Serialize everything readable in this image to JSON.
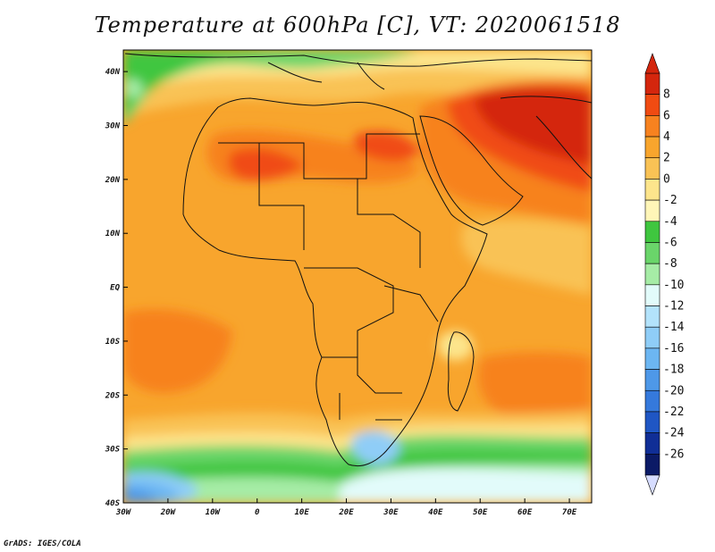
{
  "title": "Temperature at 600hPa [C], VT: 2020061518",
  "credit": "GrADS: IGES/COLA",
  "map": {
    "lon_range": [
      -30,
      75
    ],
    "lat_range": [
      -40,
      44
    ],
    "lon_ticks": [
      "30W",
      "20W",
      "10W",
      "0",
      "10E",
      "20E",
      "30E",
      "40E",
      "50E",
      "60E",
      "70E"
    ],
    "lat_ticks": [
      "40N",
      "30N",
      "20N",
      "10N",
      "EQ",
      "10S",
      "20S",
      "30S",
      "40S"
    ]
  },
  "colorbar": {
    "levels": [
      "8",
      "6",
      "4",
      "2",
      "0",
      "-2",
      "-4",
      "-6",
      "-8",
      "-10",
      "-12",
      "-14",
      "-16",
      "-18",
      "-20",
      "-22",
      "-24",
      "-26"
    ],
    "colors": [
      "#d4260d",
      "#f04b12",
      "#f7821f",
      "#f8a52d",
      "#f9c255",
      "#fde58c",
      "#fff6b8",
      "#3fc63f",
      "#6ad56a",
      "#a6eca6",
      "#e2fbfa",
      "#b3e3fb",
      "#8fcdf7",
      "#6cb6f2",
      "#4e98e8",
      "#3579dc",
      "#1f56c4",
      "#102e96",
      "#0b1a66"
    ],
    "bottom_color": "#d6dcff"
  }
}
